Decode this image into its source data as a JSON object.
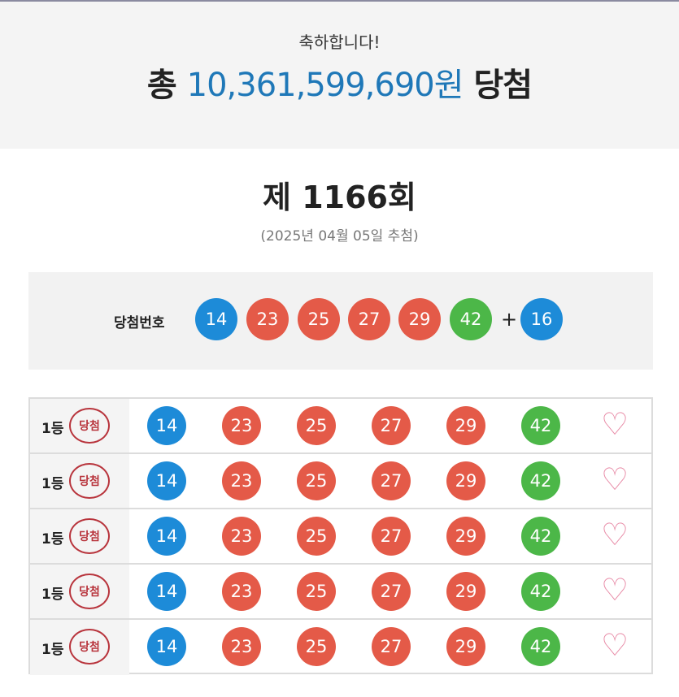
{
  "header": {
    "congrats": "축하합니다!",
    "prefix": "총",
    "amount": "10,361,599,690원",
    "suffix": "당첨"
  },
  "draw": {
    "round": "제 1166회",
    "date": "(2025년 04월 05일 추첨)"
  },
  "winning": {
    "label": "당첨번호",
    "numbers": [
      {
        "n": "14",
        "color": "blue"
      },
      {
        "n": "23",
        "color": "red"
      },
      {
        "n": "25",
        "color": "red"
      },
      {
        "n": "27",
        "color": "red"
      },
      {
        "n": "29",
        "color": "red"
      },
      {
        "n": "42",
        "color": "green"
      }
    ],
    "plus": "+",
    "bonus": {
      "n": "16",
      "color": "blue"
    }
  },
  "colors": {
    "blue": "#1d8bd8",
    "red": "#e45a48",
    "green": "#4cb748",
    "amount": "#1f78b8"
  },
  "tickets": [
    {
      "rank": "1등",
      "result": "당첨",
      "numbers": [
        "14",
        "23",
        "25",
        "27",
        "29",
        "42"
      ],
      "icon": "heart-outline-icon"
    },
    {
      "rank": "1등",
      "result": "당첨",
      "numbers": [
        "14",
        "23",
        "25",
        "27",
        "29",
        "42"
      ],
      "icon": "heart-outline-icon"
    },
    {
      "rank": "1등",
      "result": "당첨",
      "numbers": [
        "14",
        "23",
        "25",
        "27",
        "29",
        "42"
      ],
      "icon": "heart-outline-icon"
    },
    {
      "rank": "1등",
      "result": "당첨",
      "numbers": [
        "14",
        "23",
        "25",
        "27",
        "29",
        "42"
      ],
      "icon": "heart-outline-icon"
    },
    {
      "rank": "1등",
      "result": "당첨",
      "numbers": [
        "14",
        "23",
        "25",
        "27",
        "29",
        "42"
      ],
      "icon": "heart-outline-icon"
    }
  ]
}
